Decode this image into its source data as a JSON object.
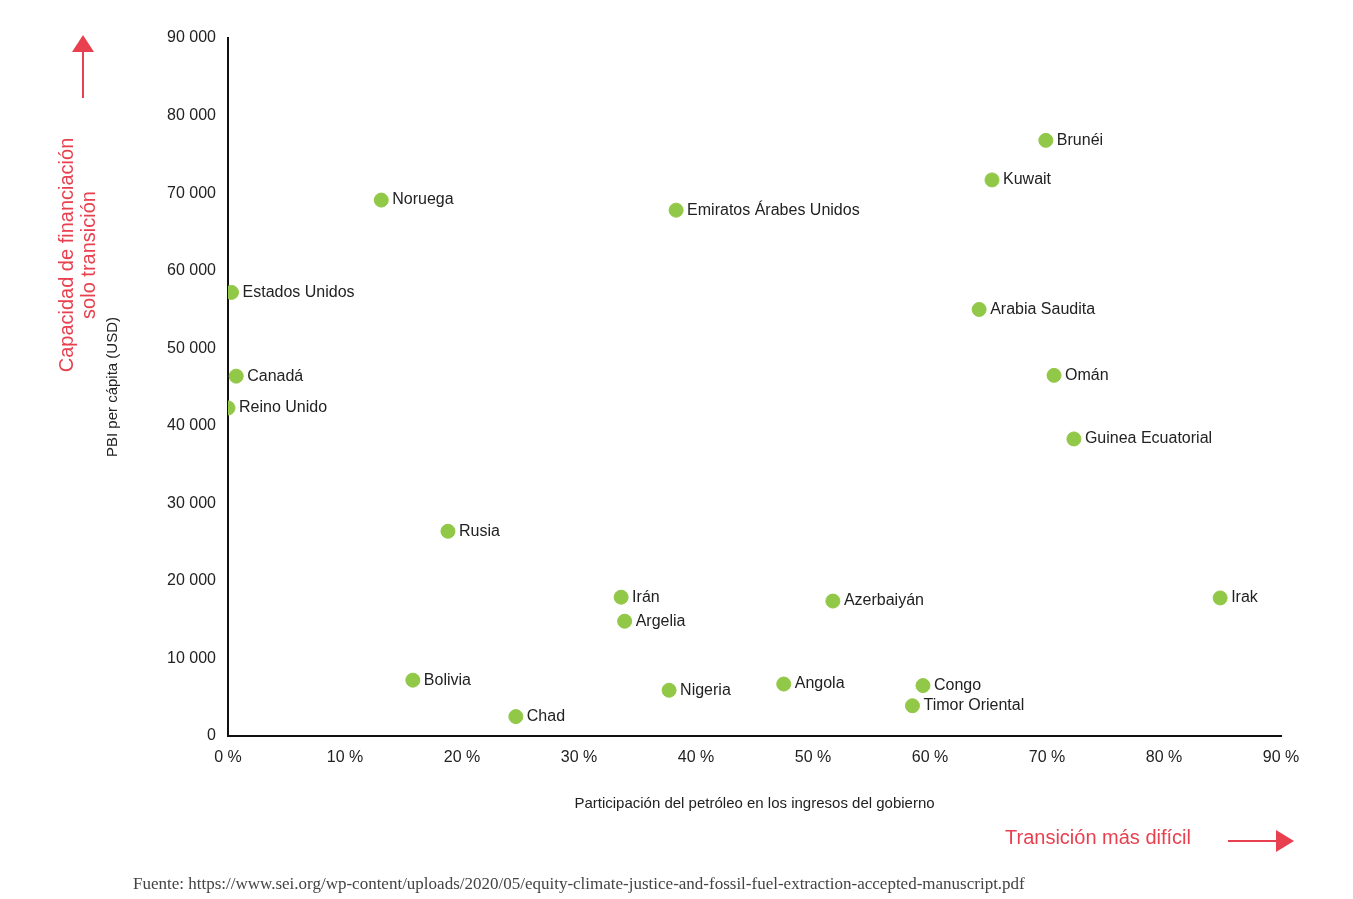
{
  "chart_data": {
    "type": "scatter",
    "xlabel": "Participación del petróleo en los ingresos del gobierno",
    "ylabel": "PBI per cápita (USD)",
    "xlim": [
      0,
      90
    ],
    "xticks": [
      {
        "value": 0,
        "label": "0 %"
      },
      {
        "value": 10,
        "label": "10 %"
      },
      {
        "value": 20,
        "label": "20 %"
      },
      {
        "value": 30,
        "label": "30 %"
      },
      {
        "value": 40,
        "label": "40 %"
      },
      {
        "value": 50,
        "label": "50 %"
      },
      {
        "value": 60,
        "label": "60 %"
      },
      {
        "value": 70,
        "label": "70 %"
      },
      {
        "value": 80,
        "label": "80 %"
      },
      {
        "value": 90,
        "label": "90 %"
      }
    ],
    "ylim": [
      0,
      90000
    ],
    "yticks": [
      0,
      {
        "value": 10000,
        "label": "10 000"
      },
      {
        "value": 20000,
        "label": "20 000"
      },
      {
        "value": 30000,
        "label": "30 000"
      },
      {
        "value": 40000,
        "label": "40 000"
      },
      {
        "value": 50000,
        "label": "50 000"
      },
      {
        "value": 60000,
        "label": "60 000"
      },
      {
        "value": 70000,
        "label": "70 000"
      },
      {
        "value": 80000,
        "label": "80 000"
      },
      {
        "value": 90000,
        "label": "90 000"
      }
    ],
    "grid": false,
    "legend": false,
    "marker": "circle",
    "series": [
      {
        "color": "#92c848",
        "x": [
          69.9,
          65.3,
          13.1,
          38.3,
          0.3,
          64.2,
          0.7,
          70.6,
          0,
          72.3,
          18.8,
          33.6,
          84.8,
          51.7,
          33.9,
          15.8,
          47.5,
          59.4,
          37.7,
          24.6,
          58.5
        ],
        "values": [
          76800,
          71700,
          69100,
          67800,
          57200,
          55000,
          46400,
          46500,
          42300,
          38300,
          26400,
          17900,
          17800,
          17400,
          14800,
          7200,
          6700,
          6500,
          5900,
          2500,
          3900
        ]
      }
    ],
    "annotations": [
      "Capacidad de financiación solo transición",
      "Transición más difícil",
      "Fuente: https://www.sei.org/wp-content/uploads/2020/05/equity-climate-justice-and-fossil-fuel-extraction-accepted-manuscript.pdf",
      {
        "text": "Brunéi",
        "x": 69.9,
        "y": 76800
      },
      {
        "text": "Kuwait",
        "x": 65.3,
        "y": 71700
      },
      {
        "text": "Noruega",
        "x": 13.1,
        "y": 69100
      },
      {
        "text": "Emiratos Árabes Unidos",
        "x": 38.3,
        "y": 67800
      },
      {
        "text": "Estados Unidos",
        "x": 0.3,
        "y": 57200
      },
      {
        "text": "Arabia Saudita",
        "x": 64.2,
        "y": 55000
      },
      {
        "text": "Canadá",
        "x": 0.7,
        "y": 46400
      },
      {
        "text": "Omán",
        "x": 70.6,
        "y": 46500
      },
      {
        "text": "Reino Unido",
        "x": 0,
        "y": 42300
      },
      {
        "text": "Guinea Ecuatorial",
        "x": 72.3,
        "y": 38300
      },
      {
        "text": "Rusia",
        "x": 18.8,
        "y": 26400
      },
      {
        "text": "Irán",
        "x": 33.6,
        "y": 17900
      },
      {
        "text": "Irak",
        "x": 84.8,
        "y": 17800
      },
      {
        "text": "Azerbaiyán",
        "x": 51.7,
        "y": 17400
      },
      {
        "text": "Argelia",
        "x": 33.9,
        "y": 14800
      },
      {
        "text": "Bolivia",
        "x": 15.8,
        "y": 7200
      },
      {
        "text": "Angola",
        "x": 47.5,
        "y": 6700
      },
      {
        "text": "Congo",
        "x": 59.4,
        "y": 6500
      },
      {
        "text": "Nigeria",
        "x": 37.7,
        "y": 5900
      },
      {
        "text": "Chad",
        "x": 24.6,
        "y": 2500
      },
      {
        "text": "Timor Oriental",
        "x": 58.5,
        "y": 3900
      }
    ]
  }
}
